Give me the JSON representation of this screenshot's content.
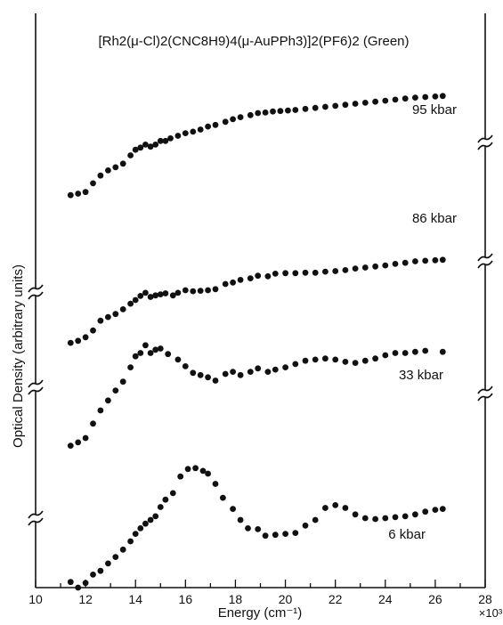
{
  "chart_data": {
    "type": "scatter",
    "title": "[Rh2(μ-Cl)2(CNC8H9)4(μ-AuPPh3)]2(PF6)2 (Green)",
    "xlabel": "Energy (cm⁻¹)",
    "ylabel": "Optical Density (arbitrary units)",
    "x_multiplier_label": "×10³",
    "xlim": [
      10,
      28
    ],
    "x_ticks": [
      "10",
      "12",
      "14",
      "16",
      "18",
      "20",
      "22",
      "24",
      "26",
      "28"
    ],
    "x_unit_scale": 1000,
    "grid": false,
    "legend": "none",
    "y_axis_breaks": true,
    "point_color": "#111111",
    "series": [
      {
        "name": "95 kbar",
        "points": [
          [
            11.4,
            22.0
          ],
          [
            11.7,
            22.6
          ],
          [
            12.0,
            23.2
          ],
          [
            12.3,
            26.6
          ],
          [
            12.6,
            29.6
          ],
          [
            12.9,
            31.6
          ],
          [
            13.2,
            32.8
          ],
          [
            13.5,
            34.2
          ],
          [
            13.8,
            37.4
          ],
          [
            14.0,
            39.6
          ],
          [
            14.2,
            40.4
          ],
          [
            14.4,
            41.6
          ],
          [
            14.6,
            40.8
          ],
          [
            14.8,
            41.6
          ],
          [
            15.0,
            43.0
          ],
          [
            15.2,
            43.0
          ],
          [
            15.4,
            44.0
          ],
          [
            15.7,
            45.0
          ],
          [
            16.0,
            46.0
          ],
          [
            16.3,
            46.6
          ],
          [
            16.6,
            47.4
          ],
          [
            16.9,
            48.6
          ],
          [
            17.2,
            49.2
          ],
          [
            17.6,
            50.4
          ],
          [
            17.9,
            51.4
          ],
          [
            18.2,
            52.2
          ],
          [
            18.6,
            53.0
          ],
          [
            18.9,
            53.8
          ],
          [
            19.2,
            54.0
          ],
          [
            19.5,
            54.4
          ],
          [
            19.8,
            54.6
          ],
          [
            20.1,
            54.8
          ],
          [
            20.4,
            55.0
          ],
          [
            20.8,
            55.4
          ],
          [
            21.2,
            55.8
          ],
          [
            21.6,
            56.2
          ],
          [
            22.0,
            56.6
          ],
          [
            22.4,
            57.0
          ],
          [
            22.8,
            57.4
          ],
          [
            23.2,
            57.8
          ],
          [
            23.6,
            58.2
          ],
          [
            24.0,
            58.6
          ],
          [
            24.4,
            59.0
          ],
          [
            24.8,
            59.4
          ],
          [
            25.2,
            59.8
          ],
          [
            25.6,
            60.0
          ],
          [
            26.0,
            60.2
          ],
          [
            26.3,
            60.4
          ]
        ]
      },
      {
        "name": "86 kbar",
        "points": [
          [
            11.4,
            3.4
          ],
          [
            11.7,
            4.2
          ],
          [
            12.0,
            5.6
          ],
          [
            12.3,
            8.2
          ],
          [
            12.6,
            12.0
          ],
          [
            12.9,
            13.4
          ],
          [
            13.2,
            14.6
          ],
          [
            13.5,
            16.4
          ],
          [
            13.8,
            18.6
          ],
          [
            14.0,
            20.0
          ],
          [
            14.2,
            21.6
          ],
          [
            14.4,
            22.8
          ],
          [
            14.6,
            21.2
          ],
          [
            14.8,
            21.8
          ],
          [
            15.0,
            22.2
          ],
          [
            15.2,
            22.6
          ],
          [
            15.5,
            21.8
          ],
          [
            15.7,
            22.8
          ],
          [
            16.0,
            23.8
          ],
          [
            16.3,
            23.4
          ],
          [
            16.6,
            23.6
          ],
          [
            16.9,
            23.8
          ],
          [
            17.2,
            24.2
          ],
          [
            17.6,
            26.2
          ],
          [
            17.9,
            26.8
          ],
          [
            18.2,
            27.8
          ],
          [
            18.6,
            28.4
          ],
          [
            18.9,
            29.4
          ],
          [
            19.3,
            29.2
          ],
          [
            19.6,
            30.2
          ],
          [
            20.0,
            30.4
          ],
          [
            20.4,
            30.4
          ],
          [
            20.8,
            30.6
          ],
          [
            21.2,
            30.6
          ],
          [
            21.6,
            31.0
          ],
          [
            22.0,
            31.2
          ],
          [
            22.4,
            31.6
          ],
          [
            22.8,
            32.2
          ],
          [
            23.2,
            32.6
          ],
          [
            23.6,
            33.0
          ],
          [
            24.0,
            33.4
          ],
          [
            24.4,
            34.0
          ],
          [
            24.8,
            34.4
          ],
          [
            25.2,
            35.0
          ],
          [
            25.6,
            35.2
          ],
          [
            26.0,
            35.4
          ],
          [
            26.3,
            35.6
          ]
        ]
      },
      {
        "name": "33 kbar",
        "points": [
          [
            11.4,
            2.8
          ],
          [
            11.7,
            3.4
          ],
          [
            12.0,
            4.2
          ],
          [
            12.3,
            6.8
          ],
          [
            12.6,
            9.2
          ],
          [
            12.9,
            11.0
          ],
          [
            13.2,
            12.8
          ],
          [
            13.5,
            14.4
          ],
          [
            13.8,
            17.0
          ],
          [
            14.0,
            19.0
          ],
          [
            14.2,
            19.6
          ],
          [
            14.4,
            21.0
          ],
          [
            14.6,
            19.6
          ],
          [
            14.8,
            20.2
          ],
          [
            15.0,
            20.4
          ],
          [
            15.3,
            19.4
          ],
          [
            15.7,
            18.4
          ],
          [
            16.0,
            17.2
          ],
          [
            16.3,
            16.0
          ],
          [
            16.6,
            15.6
          ],
          [
            16.9,
            15.2
          ],
          [
            17.2,
            14.6
          ],
          [
            17.6,
            15.8
          ],
          [
            17.9,
            16.2
          ],
          [
            18.2,
            15.6
          ],
          [
            18.6,
            16.2
          ],
          [
            18.9,
            16.8
          ],
          [
            19.3,
            16.2
          ],
          [
            19.6,
            16.6
          ],
          [
            20.0,
            17.0
          ],
          [
            20.4,
            17.6
          ],
          [
            20.8,
            18.2
          ],
          [
            21.2,
            18.4
          ],
          [
            21.6,
            18.6
          ],
          [
            22.0,
            18.4
          ],
          [
            22.4,
            18.0
          ],
          [
            22.8,
            17.8
          ],
          [
            23.2,
            18.2
          ],
          [
            23.6,
            18.6
          ],
          [
            24.0,
            19.2
          ],
          [
            24.4,
            19.6
          ],
          [
            24.8,
            19.6
          ],
          [
            25.2,
            19.8
          ],
          [
            25.6,
            20.0
          ],
          [
            26.3,
            19.8
          ]
        ]
      },
      {
        "name": "6 kbar",
        "points": [
          [
            11.4,
            1.4
          ],
          [
            11.7,
            0.2
          ],
          [
            12.0,
            1.2
          ],
          [
            12.3,
            3.0
          ],
          [
            12.6,
            3.8
          ],
          [
            12.9,
            5.4
          ],
          [
            13.2,
            6.8
          ],
          [
            13.5,
            8.4
          ],
          [
            13.8,
            10.2
          ],
          [
            14.0,
            11.8
          ],
          [
            14.2,
            13.0
          ],
          [
            14.4,
            14.0
          ],
          [
            14.6,
            14.8
          ],
          [
            14.8,
            15.6
          ],
          [
            15.0,
            17.6
          ],
          [
            15.2,
            19.2
          ],
          [
            15.5,
            20.6
          ],
          [
            15.8,
            24.2
          ],
          [
            16.1,
            25.8
          ],
          [
            16.4,
            26.0
          ],
          [
            16.7,
            25.4
          ],
          [
            16.9,
            24.8
          ],
          [
            17.2,
            22.6
          ],
          [
            17.5,
            19.6
          ],
          [
            17.9,
            17.2
          ],
          [
            18.2,
            14.8
          ],
          [
            18.5,
            13.0
          ],
          [
            18.9,
            12.8
          ],
          [
            19.2,
            11.4
          ],
          [
            19.6,
            11.6
          ],
          [
            20.0,
            11.8
          ],
          [
            20.4,
            12.0
          ],
          [
            20.8,
            13.6
          ],
          [
            21.2,
            14.8
          ],
          [
            21.6,
            17.4
          ],
          [
            22.0,
            18.0
          ],
          [
            22.4,
            17.4
          ],
          [
            22.8,
            16.0
          ],
          [
            23.2,
            15.2
          ],
          [
            23.6,
            15.0
          ],
          [
            24.0,
            15.2
          ],
          [
            24.4,
            15.4
          ],
          [
            24.8,
            15.6
          ],
          [
            25.2,
            16.0
          ],
          [
            25.6,
            16.6
          ],
          [
            26.0,
            17.0
          ],
          [
            26.3,
            17.2
          ]
        ]
      }
    ]
  }
}
